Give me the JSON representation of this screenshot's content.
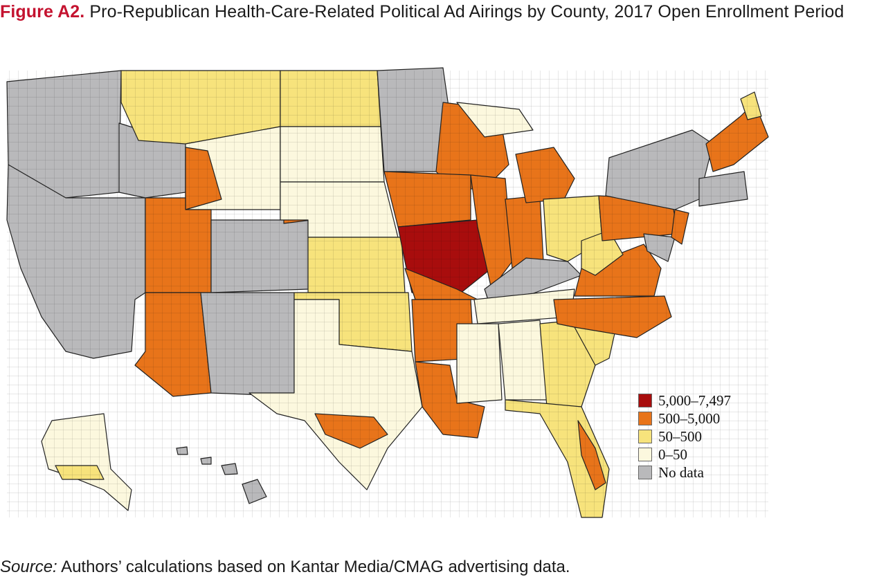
{
  "title": {
    "figure_label": "Figure A2.",
    "text": " Pro-Republican Health-Care-Related Political Ad Airings by County, 2017 Open Enrollment Period"
  },
  "legend": {
    "items": [
      {
        "label": "5,000–7,497",
        "color": "#a80d0d"
      },
      {
        "label": "500–5,000",
        "color": "#e8741a"
      },
      {
        "label": "50–500",
        "color": "#f7e37c"
      },
      {
        "label": "0–50",
        "color": "#fcf8de"
      },
      {
        "label": "No data",
        "color": "#b9b9bb"
      }
    ]
  },
  "map": {
    "region": "United States counties",
    "categories": [
      "5,000–7,497",
      "500–5,000",
      "50–500",
      "0–50",
      "No data"
    ]
  },
  "source": {
    "prefix": "Source:",
    "text": " Authors’ calculations based on Kantar Media/CMAG advertising data."
  }
}
